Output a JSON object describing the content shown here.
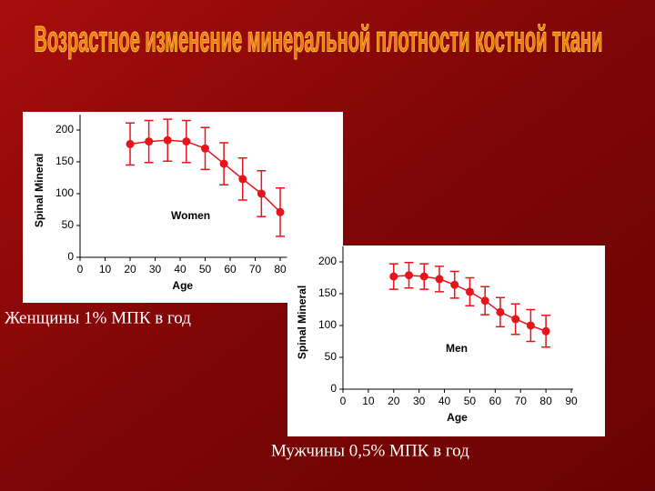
{
  "slide": {
    "title": "Возрастное изменение минеральной плотности костной ткани",
    "captions": [
      "Женщины 1% МПК в год",
      "Мужчины 0,5% МПК в год"
    ]
  },
  "chart_data": [
    {
      "type": "errorbar",
      "annotation": "Women",
      "x_label": "Age",
      "y_label": "Spinal Mineral",
      "color": "#e8141b",
      "x": [
        20,
        27.5,
        35,
        42.5,
        50,
        57.5,
        65,
        72.5,
        80
      ],
      "values": [
        178,
        182,
        184,
        182,
        171,
        147,
        123,
        100,
        71
      ],
      "errors": [
        33,
        33,
        33,
        33,
        33,
        33,
        33,
        36,
        38
      ],
      "xlim": [
        0,
        82
      ],
      "ylim": [
        0,
        210
      ],
      "xticks": [
        0,
        10,
        20,
        30,
        40,
        50,
        60,
        70,
        80
      ],
      "yticks": [
        0,
        50,
        100,
        150,
        200
      ]
    },
    {
      "type": "errorbar",
      "annotation": "Men",
      "x_label": "Age",
      "y_label": "Spinal Mineral",
      "color": "#e8141b",
      "x": [
        20,
        26,
        32,
        38,
        44,
        50,
        56,
        62,
        68,
        74,
        80
      ],
      "values": [
        177,
        179,
        177,
        173,
        164,
        153,
        139,
        121,
        110,
        100,
        91
      ],
      "errors": [
        20,
        20,
        20,
        20,
        21,
        22,
        22,
        23,
        24,
        25,
        25
      ],
      "xlim": [
        0,
        90
      ],
      "ylim": [
        0,
        210
      ],
      "xticks": [
        0,
        10,
        20,
        30,
        40,
        50,
        60,
        70,
        80,
        90
      ],
      "yticks": [
        0,
        50,
        100,
        150,
        200
      ]
    }
  ]
}
